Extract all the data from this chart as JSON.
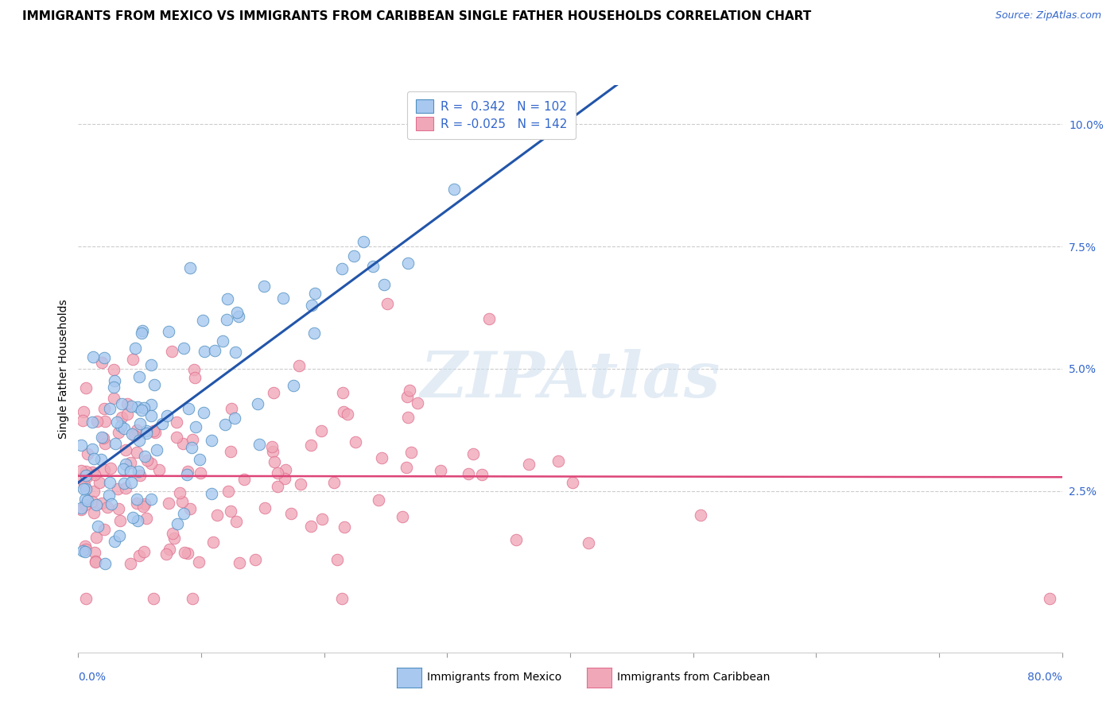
{
  "title": "IMMIGRANTS FROM MEXICO VS IMMIGRANTS FROM CARIBBEAN SINGLE FATHER HOUSEHOLDS CORRELATION CHART",
  "source": "Source: ZipAtlas.com",
  "ylabel": "Single Father Households",
  "xlim": [
    0.0,
    0.8
  ],
  "ylim": [
    -0.008,
    0.108
  ],
  "yticks": [
    0.0,
    0.025,
    0.05,
    0.075,
    0.1
  ],
  "ytick_labels": [
    "",
    "2.5%",
    "5.0%",
    "7.5%",
    "10.0%"
  ],
  "xtick_labels_left": "0.0%",
  "xtick_labels_right": "80.0%",
  "legend_entries": [
    {
      "label": "Immigrants from Mexico",
      "color": "#a8c8f0",
      "edge": "#5090c0",
      "R": " 0.342",
      "N": "102"
    },
    {
      "label": "Immigrants from Caribbean",
      "color": "#f0a8b8",
      "edge": "#e07090",
      "R": "-0.025",
      "N": "142"
    }
  ],
  "trend_mexico_color": "#2255aa",
  "trend_mexico_dash_color": "#888888",
  "trend_caribbean_color": "#dd4477",
  "watermark": "ZIPAtlas",
  "background_color": "#ffffff",
  "grid_color": "#cccccc",
  "mexico_R": 0.342,
  "mexico_N": 102,
  "caribbean_R": -0.025,
  "caribbean_N": 142,
  "title_fontsize": 11,
  "axis_label_fontsize": 10,
  "tick_fontsize": 10,
  "legend_fontsize": 11,
  "tick_color": "#3366cc"
}
